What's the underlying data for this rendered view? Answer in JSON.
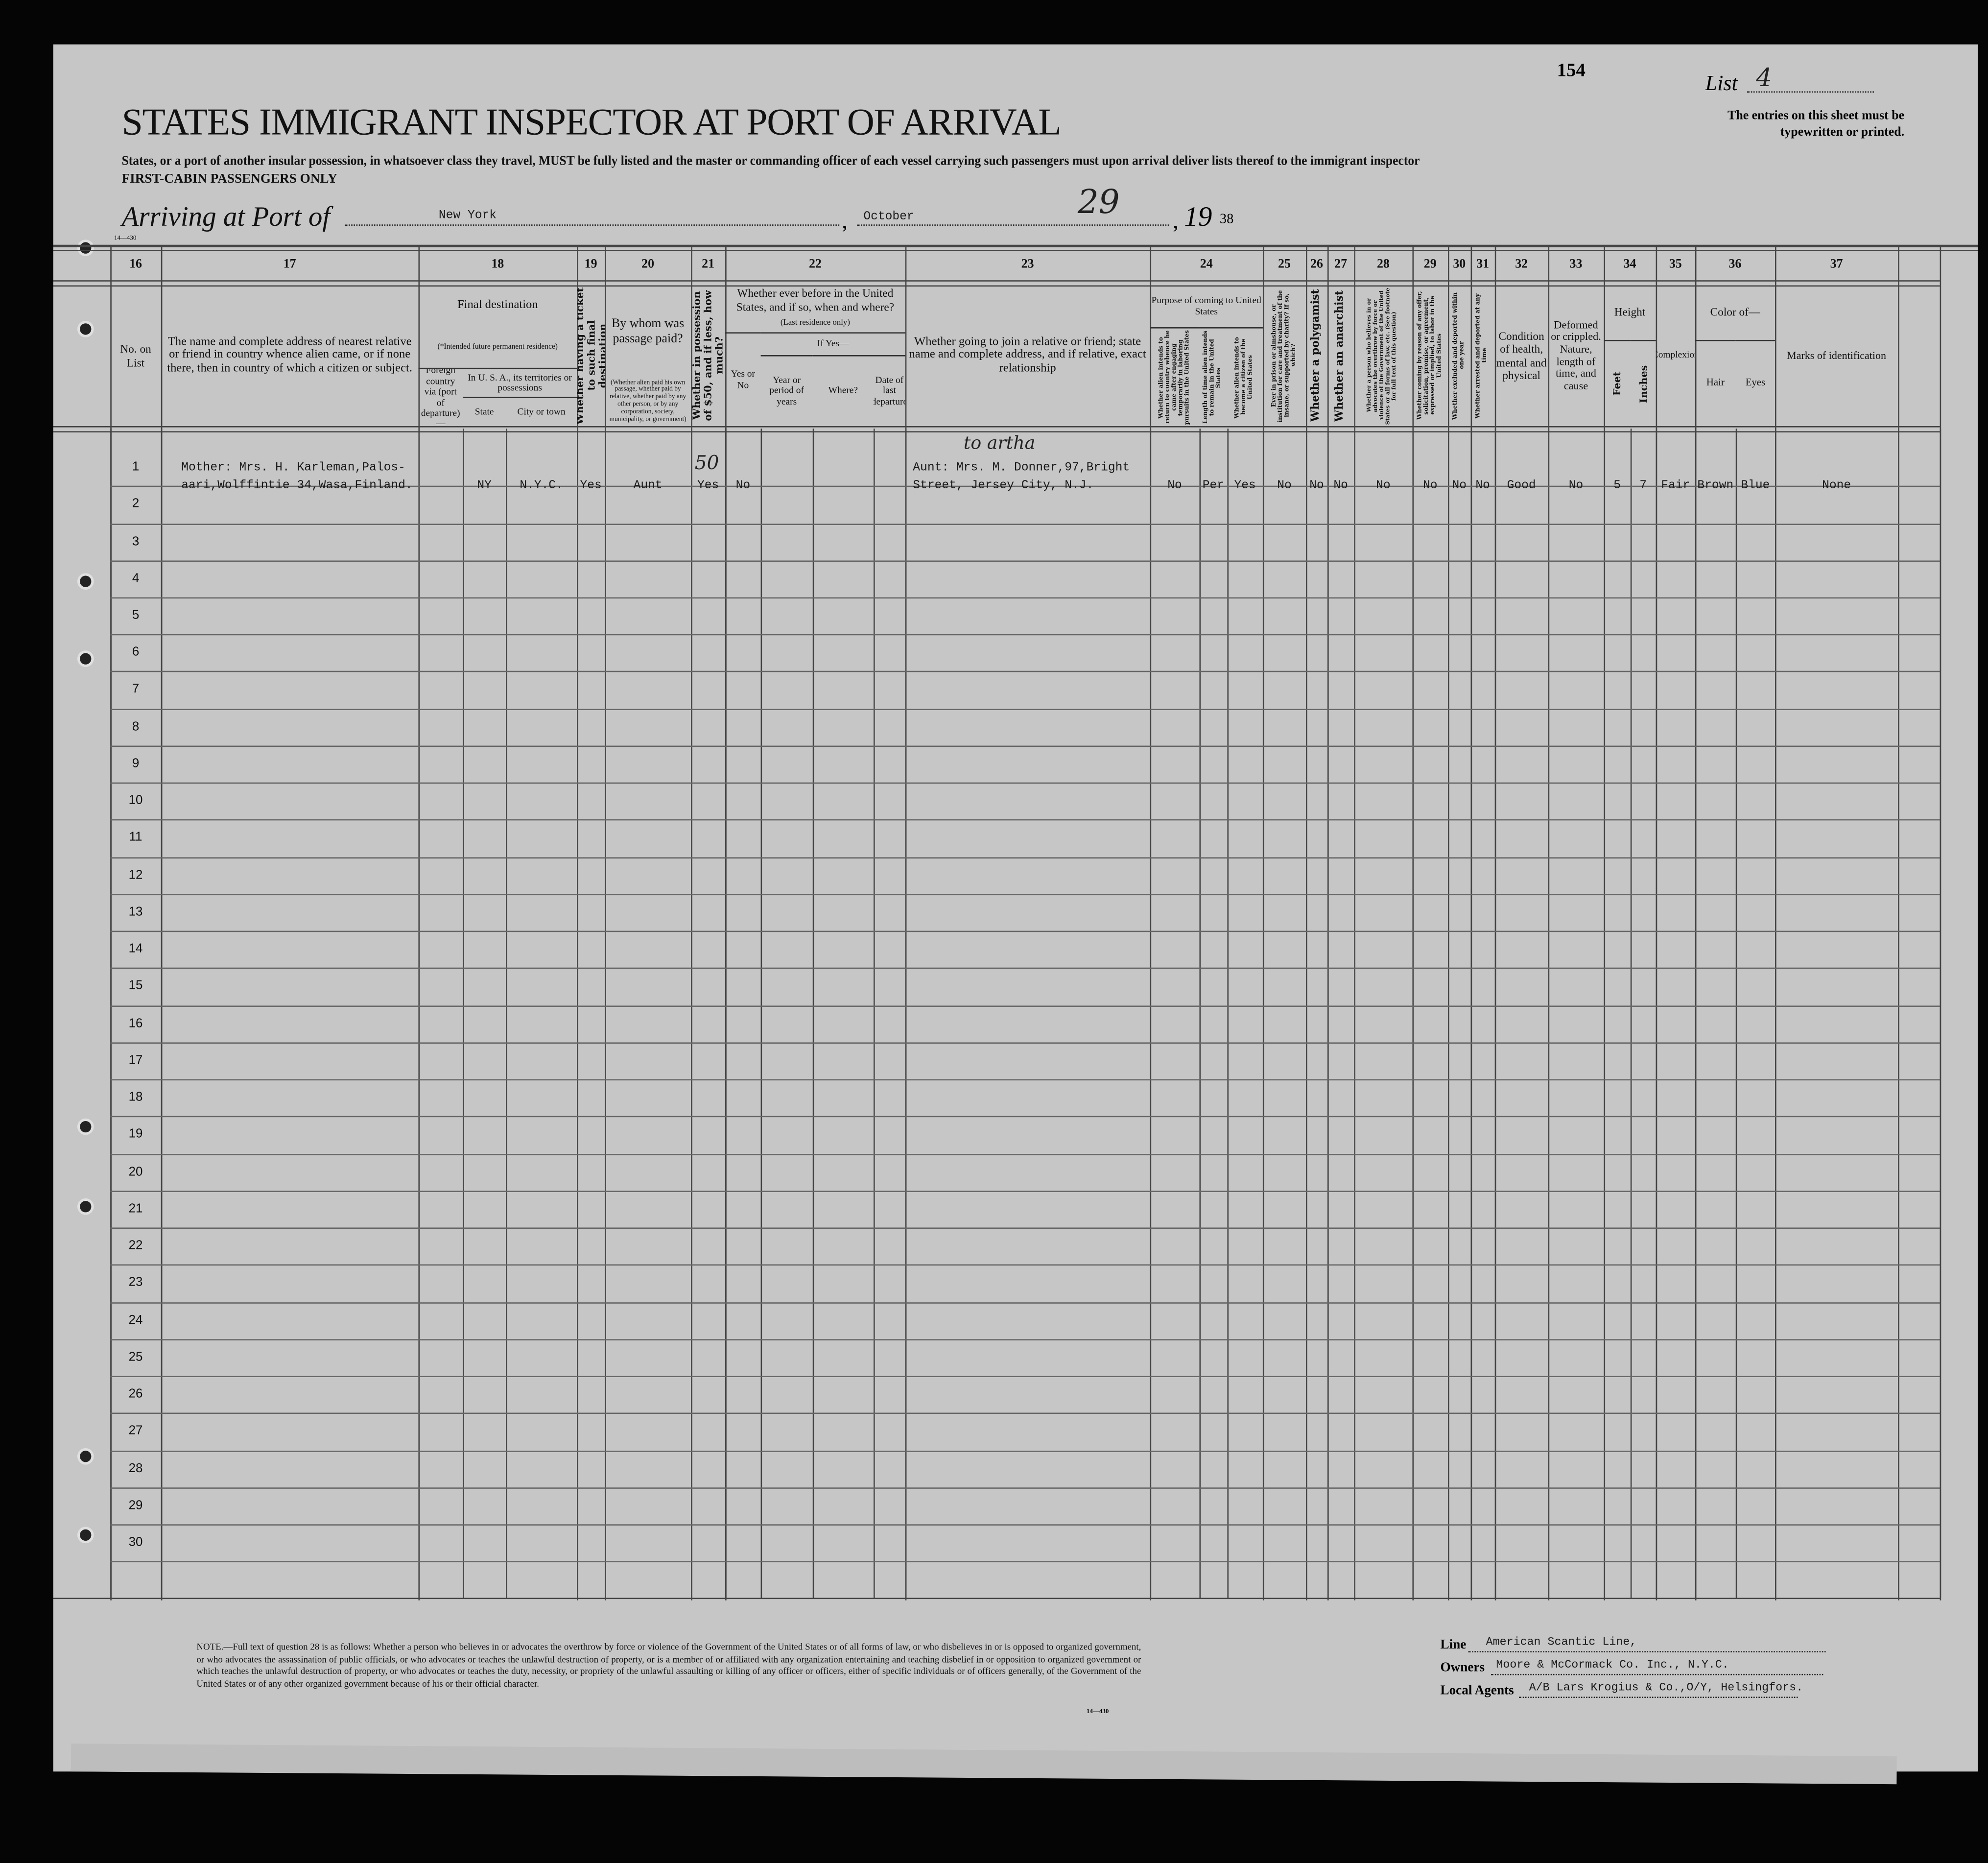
{
  "header": {
    "title": "STATES IMMIGRANT INSPECTOR AT PORT OF ARRIVAL",
    "instruction": "States, or a port of another insular possession, in whatsoever class they travel, MUST be fully listed and the master or commanding officer of each vessel carrying such passengers must upon arrival deliver lists thereof to the immigrant inspector",
    "class_note": "FIRST-CABIN PASSENGERS ONLY",
    "page_number": "154",
    "list_label": "List",
    "list_value": "4",
    "typed_note": "The entries on this sheet must be typewritten or printed.",
    "form_code": "14—430",
    "arriving_label": "Arriving at Port of",
    "port": "New York",
    "month": "October",
    "day": "29",
    "year_prefix": "19",
    "year_suffix": "38"
  },
  "columns": {
    "numbers": [
      "16",
      "17",
      "18",
      "19",
      "20",
      "21",
      "22",
      "23",
      "24",
      "25",
      "26",
      "27",
      "28",
      "29",
      "30",
      "31",
      "32",
      "33",
      "34",
      "35",
      "36",
      "37"
    ],
    "c16": "No. on List",
    "c17": "The name and complete address of nearest relative or friend in country whence alien came, or if none there, then in country of which a citizen or subject.",
    "c18_title": "Final destination",
    "c18_note": "(*Intended future permanent residence)",
    "c18_foreign": "Foreign country via (port of departure)—",
    "c18_usa": "In U. S. A., its territories or possessions",
    "c18_state": "State",
    "c18_city": "City or town",
    "c19": "Whether having a ticket to such final destination",
    "c20_title": "By whom was passage paid?",
    "c20_note": "(Whether alien paid his own passage, whether paid by relative, whether paid by any other person, or by any corporation, society, municipality, or government)",
    "c21": "Whether in possession of $50, and if less, how much?",
    "c22_title": "Whether ever before in the United States, and if so, when and where?",
    "c22_note": "(Last residence only)",
    "c22_yesno": "Yes or No",
    "c22_ifyes": "If Yes—",
    "c22_year": "Year or period of years",
    "c22_where": "Where?",
    "c22_date": "Date of last departure",
    "c23": "Whether going to join a relative or friend; state name and complete address, and if relative, exact relationship",
    "c24_title": "Purpose of coming to United States",
    "c24_return": "Whether alien intends to return to country whence he came after engaging temporarily in laboring pursuits in the United States",
    "c24_length": "Length of time alien intends to remain in the United States",
    "c24_citizen": "Whether alien intends to become a citizen of the United States",
    "c25": "Ever in prison or almshouse, or institution for care and treatment of the insane, or supported by charity? If so, which?",
    "c26": "Whether a polygamist",
    "c27": "Whether an anarchist",
    "c28": "Whether a person who believes in or advocates the overthrow by force or violence of the Government of the United States or all forms of law, etc. (See footnote for full text of this question)",
    "c29": "Whether coming by reason of any offer, solicitation, promise, or agreement, expressed or implied, to labor in the United States",
    "c30": "Whether excluded and deported within one year",
    "c31": "Whether arrested and deported at any time",
    "c32": "Condition of health, mental and physical",
    "c33": "Deformed or crippled. Nature, length of time, and cause",
    "c34_title": "Height",
    "c34_feet": "Feet",
    "c34_inches": "Inches",
    "c35": "Complexion",
    "c36_title": "Color of—",
    "c36_hair": "Hair",
    "c36_eyes": "Eyes",
    "c37": "Marks of identification"
  },
  "rows": [
    {
      "no": "1",
      "relative_line1": "Mother: Mrs. H. Karleman,Palos-",
      "relative_line2": "aari,Wolffintie 34,Wasa,Finland.",
      "values": {
        "state": "NY",
        "city": "N.Y.C.",
        "ticket": "Yes",
        "paid_by": "Aunt",
        "money": "Yes",
        "before": "No",
        "p_return": "No",
        "p_length": "Per",
        "p_citizen": "Yes",
        "prison": "No",
        "polygamist": "No",
        "anarchist": "No",
        "q28": "No",
        "q29": "No",
        "excluded": "No",
        "arrested": "No",
        "health": "Good",
        "deformed": "No",
        "feet": "5",
        "inches": "7",
        "complexion": "Fair",
        "hair": "Brown",
        "eyes": "Blue",
        "marks": "None"
      },
      "join_line1": "Aunt: Mrs. M. Donner,97,Bright",
      "join_line2": "Street, Jersey City, N.J.",
      "hand_money": "50",
      "hand_join": "to artha"
    }
  ],
  "row_numbers": [
    "1",
    "2",
    "3",
    "4",
    "5",
    "6",
    "7",
    "8",
    "9",
    "10",
    "11",
    "12",
    "13",
    "14",
    "15",
    "16",
    "17",
    "18",
    "19",
    "20",
    "21",
    "22",
    "23",
    "24",
    "25",
    "26",
    "27",
    "28",
    "29",
    "30"
  ],
  "footer": {
    "note": "NOTE.—Full text of question 28 is as follows: Whether a person who believes in or advocates the overthrow by force or violence of the Government of the United States or of all forms of law, or who disbelieves in or is opposed to organized government, or who advocates the assassination of public officials, or who advocates or teaches the unlawful destruction of property, or is a member of or affiliated with any organization entertaining and teaching disbelief in or opposition to organized government or which teaches the unlawful destruction of property, or who advocates or teaches the duty, necessity, or propriety of the unlawful assaulting or killing of any officer or officers, either of specific individuals or of officers generally, of the Government of the United States or of any other organized government because of his or their official character.",
    "form_code": "14—430",
    "line_label": "Line",
    "line_value": "American Scantic Line,",
    "owners_label": "Owners",
    "owners_value": "Moore & McCormack Co. Inc., N.Y.C.",
    "agents_label": "Local Agents",
    "agents_value": "A/B Lars Krogius & Co.,O/Y, Helsingfors."
  }
}
